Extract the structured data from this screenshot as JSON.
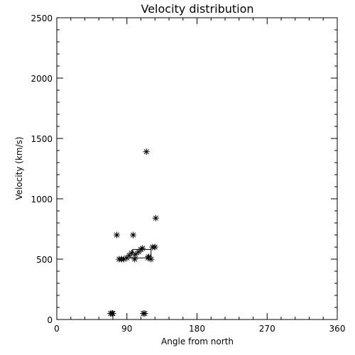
{
  "chart_data": {
    "type": "scatter",
    "title": "Velocity distribution",
    "xlabel": "Angle from north",
    "ylabel": "Velocity (km/s)",
    "xlim": [
      0,
      360
    ],
    "ylim": [
      0,
      2500
    ],
    "x_ticks": [
      0,
      90,
      180,
      270,
      360
    ],
    "y_ticks": [
      0,
      500,
      1000,
      1500,
      2000,
      2500
    ],
    "x_tick_labels": [
      "0",
      "90",
      "180",
      "270",
      "360"
    ],
    "y_tick_labels": [
      "0",
      "500",
      "1000",
      "1500",
      "2000",
      "2500"
    ],
    "grid": false,
    "marker": "asterisk",
    "series": [
      {
        "points": [
          [
            69,
            50
          ],
          [
            71,
            50
          ],
          [
            72,
            50
          ],
          [
            77,
            700
          ],
          [
            80,
            500
          ],
          [
            83,
            500
          ],
          [
            86,
            500
          ],
          [
            90,
            510
          ],
          [
            93,
            530
          ],
          [
            96,
            550
          ],
          [
            98,
            700
          ],
          [
            100,
            500
          ],
          [
            101,
            540
          ],
          [
            105,
            560
          ],
          [
            108,
            580
          ],
          [
            110,
            590
          ],
          [
            111,
            50
          ],
          [
            113,
            50
          ],
          [
            115,
            1390
          ],
          [
            117,
            510
          ],
          [
            118,
            520
          ],
          [
            121,
            500
          ],
          [
            123,
            600
          ],
          [
            126,
            600
          ],
          [
            127,
            840
          ]
        ]
      }
    ],
    "connector_segments": [
      [
        [
          93,
          510
        ],
        [
          121,
          510
        ]
      ],
      [
        [
          121,
          510
        ],
        [
          121,
          590
        ]
      ],
      [
        [
          97,
          580
        ],
        [
          121,
          580
        ]
      ],
      [
        [
          97,
          550
        ],
        [
          97,
          580
        ]
      ]
    ]
  }
}
